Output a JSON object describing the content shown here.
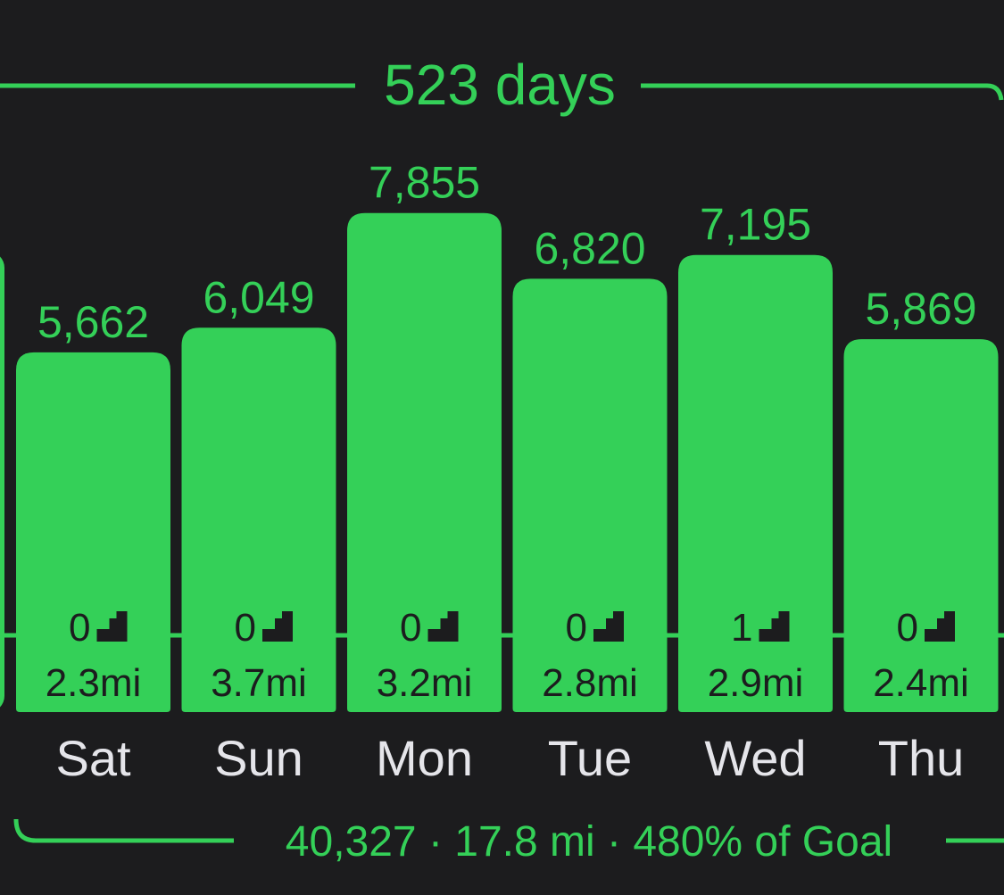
{
  "header": {
    "streak_label": "523 days"
  },
  "footer": {
    "total_steps": "40,327",
    "total_distance": "17.8 mi",
    "goal_percent": "480% of Goal",
    "separator": " · "
  },
  "colors": {
    "accent": "#34d058",
    "background": "#1c1c1e",
    "day_label": "#e5e5ea",
    "inner_text": "#1c1c1e"
  },
  "chart_data": {
    "type": "bar",
    "categories": [
      "Sat",
      "Sun",
      "Mon",
      "Tue",
      "Wed",
      "Thu"
    ],
    "values": [
      5662,
      6049,
      7855,
      6820,
      7195,
      5869
    ],
    "value_labels": [
      "5,662",
      "6,049",
      "7,855",
      "6,820",
      "7,195",
      "5,869"
    ],
    "flights_climbed": [
      0,
      0,
      0,
      0,
      1,
      0
    ],
    "distance_labels": [
      "2.3mi",
      "3.7mi",
      "3.2mi",
      "2.8mi",
      "2.9mi",
      "2.4mi"
    ],
    "icon": "stairs-icon",
    "partial_bar_left": true
  }
}
